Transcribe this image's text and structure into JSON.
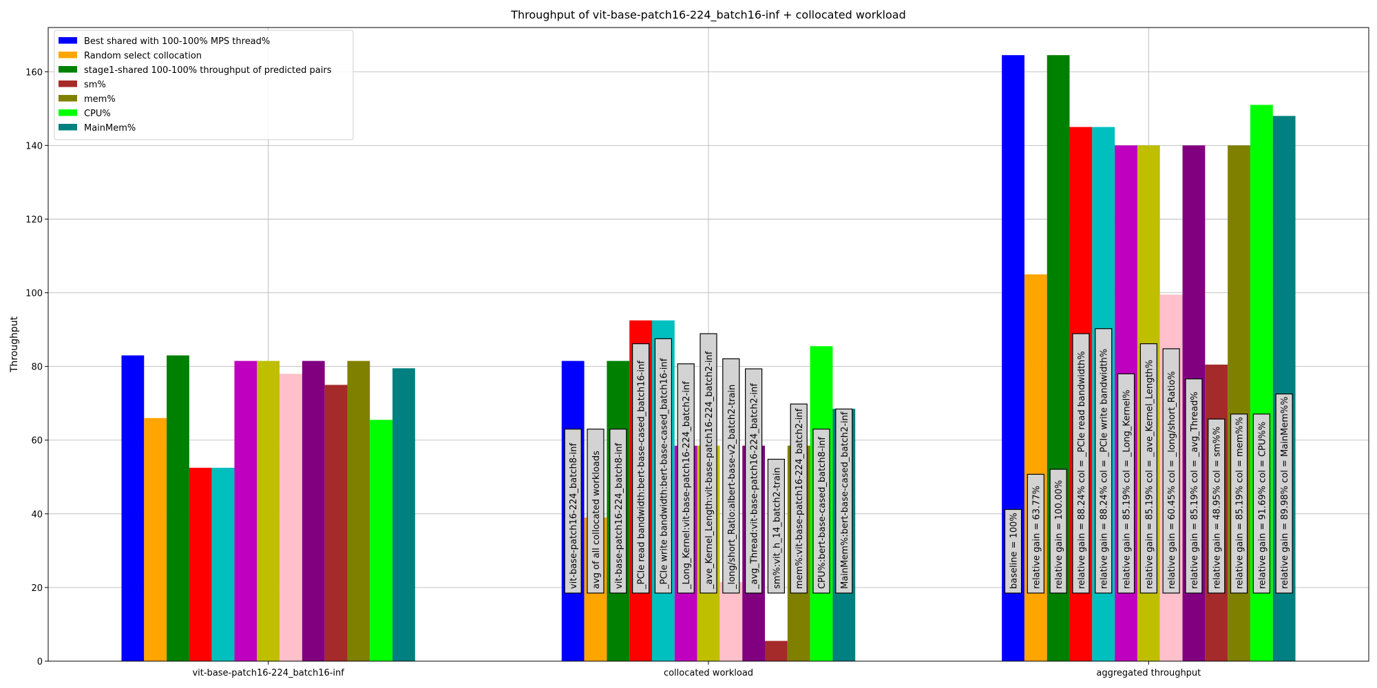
{
  "chart_data": {
    "type": "bar",
    "title": "Throughput of vit-base-patch16-224_batch16-inf + collocated workload",
    "xlabel": "",
    "ylabel": "Throughput",
    "ylim": [
      0,
      172
    ],
    "yticks": [
      0,
      20,
      40,
      60,
      80,
      100,
      120,
      140,
      160
    ],
    "grid": true,
    "legend_position": "top-left",
    "categories": [
      "vit-base-patch16-224_batch16-inf",
      "collocated workload",
      "aggregated throughput"
    ],
    "series": [
      {
        "name": "Best shared with 100-100% MPS thread%",
        "color": "#0000ff",
        "values": [
          83,
          81.5,
          164.5
        ]
      },
      {
        "name": "Random select collocation",
        "color": "#ffa500",
        "values": [
          66,
          39,
          105
        ]
      },
      {
        "name": "stage1-shared 100-100% throughput of predicted pairs",
        "color": "#008000",
        "values": [
          83,
          81.5,
          164.5
        ]
      },
      {
        "name": "",
        "color": "#ff0000",
        "values": [
          52.5,
          92.5,
          145
        ]
      },
      {
        "name": "",
        "color": "#00bfbf",
        "values": [
          52.5,
          92.5,
          145
        ]
      },
      {
        "name": "",
        "color": "#bf00bf",
        "values": [
          81.5,
          58.5,
          140
        ]
      },
      {
        "name": "",
        "color": "#bfbf00",
        "values": [
          81.5,
          58.5,
          140
        ]
      },
      {
        "name": "",
        "color": "#ffc0cb",
        "values": [
          78,
          21.5,
          99.5
        ]
      },
      {
        "name": "",
        "color": "#800080",
        "values": [
          81.5,
          58.5,
          140
        ]
      },
      {
        "name": "sm%",
        "color": "#a52a2a",
        "values": [
          75,
          5.5,
          80.5
        ]
      },
      {
        "name": "mem%",
        "color": "#808000",
        "values": [
          81.5,
          58.5,
          140
        ]
      },
      {
        "name": "CPU%",
        "color": "#00ff00",
        "values": [
          65.5,
          85.5,
          151
        ]
      },
      {
        "name": "MainMem%",
        "color": "#008080",
        "values": [
          79.5,
          68.5,
          148
        ]
      }
    ],
    "legend": [
      {
        "label": "Best shared with 100-100% MPS thread%",
        "color": "#0000ff"
      },
      {
        "label": "Random select collocation",
        "color": "#ffa500"
      },
      {
        "label": "stage1-shared 100-100% throughput of predicted pairs",
        "color": "#008000"
      },
      {
        "label": "sm%",
        "color": "#a52a2a"
      },
      {
        "label": "mem%",
        "color": "#808000"
      },
      {
        "label": "CPU%",
        "color": "#00ff00"
      },
      {
        "label": "MainMem%",
        "color": "#008080"
      }
    ],
    "annotations": [
      [
        "",
        "",
        "",
        "",
        "",
        "",
        "",
        "",
        "",
        "",
        "",
        "",
        ""
      ],
      [
        "vit-base-patch16-224_batch8-inf",
        "avg of all collocated workloads",
        "vit-base-patch16-224_batch8-inf",
        "_PCIe read bandwidth:bert-base-cased_batch16-inf",
        "_PCIe write bandwidth:bert-base-cased_batch16-inf",
        "_Long_Kernel:vit-base-patch16-224_batch2-inf",
        "_ave_Kernel_Length:vit-base-patch16-224_batch2-inf",
        "_long/short_Ratio:albert-base-v2_batch2-train",
        "_avg_Thread:vit-base-patch16-224_batch2-inf",
        "sm%:vit_h_14_batch2-train",
        "mem%:vit-base-patch16-224_batch2-inf",
        "CPU%:bert-base-cased_batch8-inf",
        "MainMem%:bert-base-cased_batch2-inf"
      ],
      [
        "baseline = 100%",
        "relative gain = 63.77%",
        "relative gain = 100.00%",
        "relative gain = 88.24% col = _PCIe read bandwidth%",
        "relative gain = 88.24% col = _PCIe write bandwidth%",
        "relative gain = 85.19% col = _Long_Kernel%",
        "relative gain = 85.19% col = _ave_Kernel_Length%",
        "relative gain = 60.45% col = _long/short_Ratio%",
        "relative gain = 85.19% col = _avg_Thread%",
        "relative gain = 48.95% col = sm%%",
        "relative gain = 85.19% col = mem%%",
        "relative gain = 91.69% col = CPU%%",
        "relative gain = 89.98% col = MainMem%%"
      ]
    ]
  }
}
